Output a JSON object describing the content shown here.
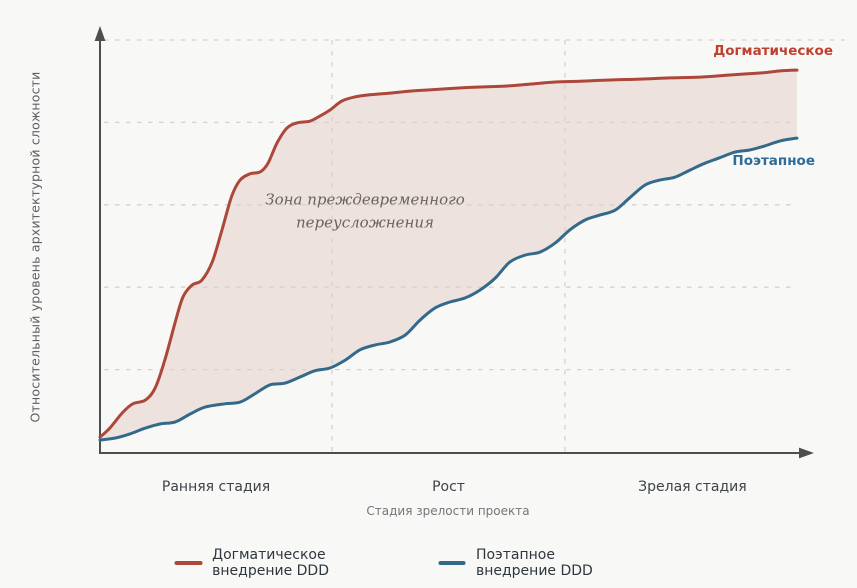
{
  "app": {
    "background": "#f8f8f6"
  },
  "chart_data": {
    "type": "area",
    "title": "",
    "xlabel": "Стадия зрелости проекта",
    "ylabel": "Относительный уровень архитектурной сложности",
    "x_domain": [
      0,
      10
    ],
    "y_domain": [
      0,
      10
    ],
    "grid": {
      "visible": true,
      "style": "dashed",
      "h_values": [
        2,
        4,
        6,
        8,
        10
      ],
      "v_values": [
        3.33,
        6.67
      ],
      "color": "#d5d2cd"
    },
    "axis_color": "#4e4e4e",
    "stages": [
      "Ранняя стадия",
      "Рост",
      "Зрелая стадия"
    ],
    "annotation": {
      "lines": [
        "Зона преждевременного",
        "переусложнения"
      ],
      "x": 3.8,
      "y": 5.9
    },
    "series": [
      {
        "name": "Догматическое внедрение DDD",
        "end_label": "Догматическое",
        "color": "#ad473a",
        "label_color": "#bf4030",
        "x": [
          0,
          0.14,
          0.32,
          0.47,
          0.65,
          0.79,
          0.93,
          1.08,
          1.19,
          1.32,
          1.46,
          1.61,
          1.75,
          1.89,
          2.01,
          2.15,
          2.3,
          2.41,
          2.54,
          2.68,
          2.83,
          3.01,
          3.16,
          3.3,
          3.47,
          3.66,
          3.87,
          4.16,
          4.45,
          4.73,
          5.09,
          5.45,
          5.81,
          6.17,
          6.53,
          6.89,
          7.32,
          7.75,
          8.18,
          8.61,
          9.04,
          9.47,
          9.76,
          10.0
        ],
        "y": [
          0.36,
          0.58,
          0.95,
          1.17,
          1.26,
          1.55,
          2.23,
          3.16,
          3.76,
          4.05,
          4.17,
          4.61,
          5.39,
          6.21,
          6.6,
          6.75,
          6.8,
          7.01,
          7.5,
          7.86,
          7.99,
          8.03,
          8.16,
          8.3,
          8.52,
          8.62,
          8.67,
          8.71,
          8.76,
          8.79,
          8.83,
          8.86,
          8.88,
          8.93,
          8.98,
          9.0,
          9.03,
          9.05,
          9.08,
          9.1,
          9.15,
          9.2,
          9.25,
          9.27
        ]
      },
      {
        "name": "Поэтапное внедрение DDD",
        "end_label": "Поэтапное",
        "color": "#336a8a",
        "label_color": "#2e6b96",
        "x": [
          0,
          0.22,
          0.43,
          0.65,
          0.86,
          1.08,
          1.29,
          1.51,
          1.79,
          2.01,
          2.22,
          2.44,
          2.65,
          2.87,
          3.08,
          3.3,
          3.52,
          3.73,
          3.95,
          4.16,
          4.38,
          4.59,
          4.81,
          5.02,
          5.24,
          5.45,
          5.67,
          5.88,
          6.1,
          6.31,
          6.53,
          6.74,
          6.96,
          7.17,
          7.39,
          7.6,
          7.82,
          8.03,
          8.25,
          8.46,
          8.68,
          8.89,
          9.11,
          9.32,
          9.54,
          9.76,
          10.0
        ],
        "y": [
          0.29,
          0.34,
          0.44,
          0.58,
          0.68,
          0.73,
          0.92,
          1.09,
          1.17,
          1.21,
          1.41,
          1.63,
          1.67,
          1.82,
          1.97,
          2.04,
          2.23,
          2.48,
          2.6,
          2.67,
          2.84,
          3.2,
          3.5,
          3.64,
          3.74,
          3.93,
          4.22,
          4.61,
          4.78,
          4.85,
          5.07,
          5.39,
          5.63,
          5.75,
          5.87,
          6.17,
          6.48,
          6.6,
          6.67,
          6.84,
          7.01,
          7.14,
          7.28,
          7.33,
          7.43,
          7.55,
          7.62
        ]
      }
    ],
    "fill_between": {
      "upper": 0,
      "lower": 1,
      "color": "rgba(173,71,58,0.12)"
    },
    "legend_position": "bottom-center"
  },
  "legend": {
    "items": [
      {
        "label": "Догматическое внедрение DDD",
        "color": "#ad473a"
      },
      {
        "label": "Поэтапное внедрение DDD",
        "color": "#336a8a"
      }
    ]
  }
}
